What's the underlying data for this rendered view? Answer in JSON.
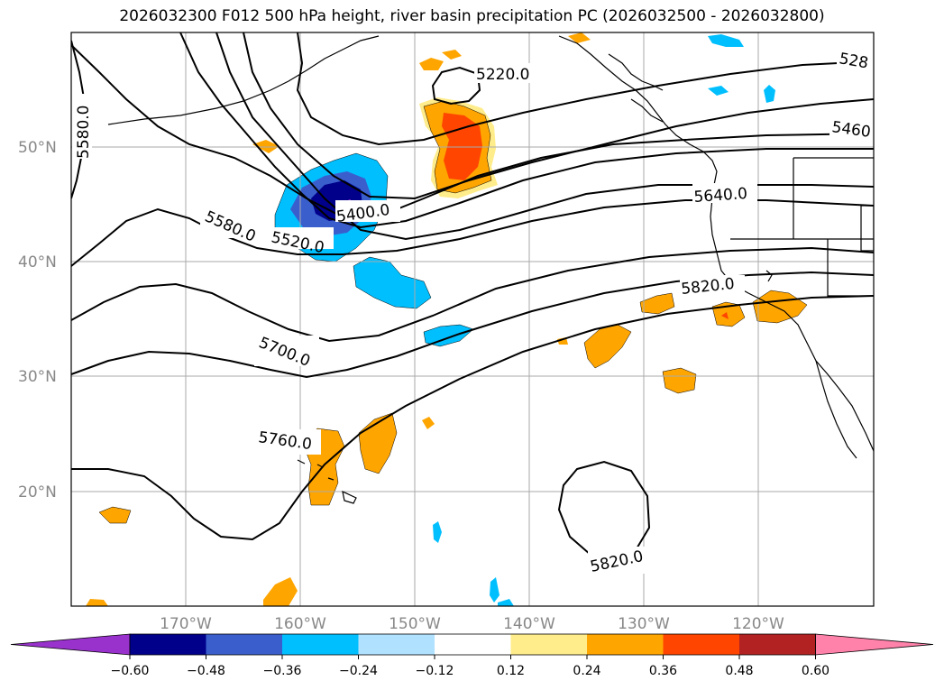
{
  "title": "2026032300 F012 500 hPa height, river basin precipitation PC (2026032500 - 2026032800)",
  "lat_labels": [
    "50°N",
    "40°N",
    "30°N",
    "20°N"
  ],
  "lon_labels": [
    "170°W",
    "160°W",
    "150°W",
    "140°W",
    "130°W",
    "120°W"
  ],
  "contour_labels": [
    "5580.0",
    "5220.0",
    "528",
    "5460",
    "5640.0",
    "5820.0",
    "5520.0",
    "5400.0",
    "5580.0",
    "5700.0",
    "5760.0",
    "5820.0"
  ],
  "colorbar": {
    "ticks": [
      "−0.60",
      "−0.48",
      "−0.36",
      "−0.24",
      "−0.12",
      "0.12",
      "0.24",
      "0.36",
      "0.48",
      "0.60"
    ],
    "colors": [
      "#9932cc",
      "#00008b",
      "#3a5fcd",
      "#00bfff",
      "#b0e2ff",
      "#ffffff",
      "#ffec8b",
      "#ffa500",
      "#ff4500",
      "#b22222",
      "#ff82ab"
    ]
  },
  "colors": {
    "frame": "#000000",
    "grid": "#aaaaaa",
    "label_gray": "#888888"
  }
}
